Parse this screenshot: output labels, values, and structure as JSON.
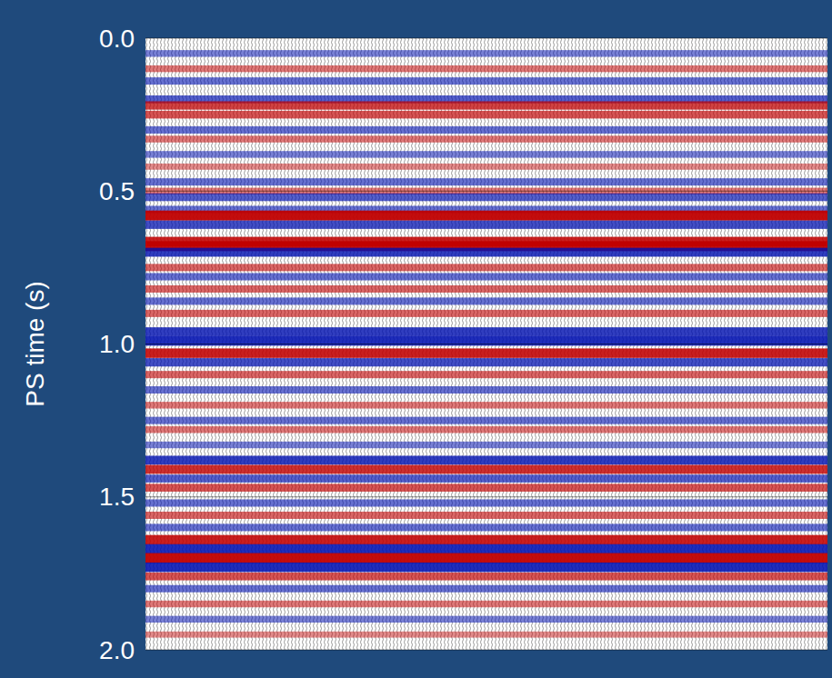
{
  "chart_data": {
    "type": "seismic",
    "y_label": "PS time (s)",
    "ylim": [
      0,
      2
    ],
    "yticks": [
      {
        "value": 0,
        "label": "0.0"
      },
      0.5,
      {
        "value": 1,
        "label": "1.0"
      },
      1.5,
      {
        "value": 2,
        "label": "2.0"
      }
    ],
    "grid": true,
    "tick_labels": "y",
    "events": {
      "time": [
        0.05,
        0.1,
        0.14,
        0.2,
        0.22,
        0.25,
        0.3,
        0.33,
        0.38,
        0.42,
        0.47,
        0.5,
        0.52,
        0.56,
        0.58,
        0.61,
        0.665,
        0.68,
        0.7,
        0.75,
        0.78,
        0.82,
        0.86,
        0.9,
        0.96,
        0.99,
        1.03,
        1.06,
        1.1,
        1.15,
        1.2,
        1.25,
        1.28,
        1.33,
        1.38,
        1.41,
        1.44,
        1.47,
        1.52,
        1.56,
        1.6,
        1.64,
        1.67,
        1.7,
        1.73,
        1.76,
        1.8,
        1.85,
        1.9,
        1.95
      ],
      "amplitude": [
        -0.4,
        0.4,
        -0.5,
        -0.6,
        0.7,
        0.6,
        -0.5,
        0.4,
        -0.4,
        0.3,
        -0.5,
        0.4,
        -0.6,
        -0.5,
        1.0,
        -0.7,
        0.9,
        1.0,
        -0.8,
        0.5,
        -0.5,
        0.5,
        -0.5,
        0.5,
        -0.8,
        -0.9,
        0.9,
        -0.7,
        0.5,
        -0.5,
        0.4,
        -0.5,
        0.4,
        -0.4,
        -0.8,
        0.8,
        -0.6,
        0.6,
        -0.5,
        0.5,
        -0.5,
        0.9,
        -0.9,
        1.0,
        -0.9,
        0.6,
        -0.5,
        0.4,
        -0.4,
        0.3
      ]
    }
  }
}
